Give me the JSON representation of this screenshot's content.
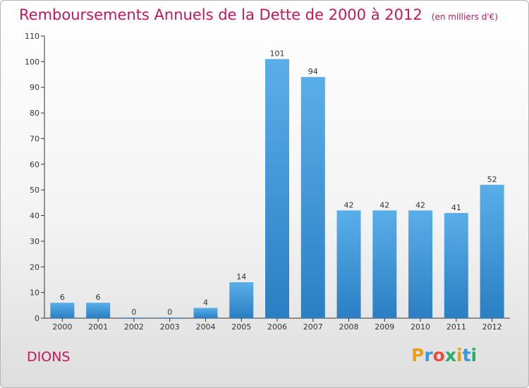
{
  "title": "Remboursements Annuels de la Dette de 2000 à 2012",
  "subtitle": "(en milliers d'€)",
  "place_name": "DIONS",
  "logo": {
    "letters": [
      "P",
      "r",
      "o",
      "x",
      "i",
      "t",
      "i"
    ],
    "colors": [
      "#f39c12",
      "#3498db",
      "#e74c3c",
      "#27ae60",
      "#f39c12",
      "#3498db",
      "#27ae60"
    ]
  },
  "colors": {
    "bar_top": "#5aaee8",
    "bar_bottom": "#2a7fc4",
    "title": "#c2185b"
  },
  "chart_data": {
    "type": "bar",
    "title": "Remboursements Annuels de la Dette de 2000 à 2012",
    "subtitle": "(en milliers d'€)",
    "categories": [
      "2000",
      "2001",
      "2002",
      "2003",
      "2004",
      "2005",
      "2006",
      "2007",
      "2008",
      "2009",
      "2010",
      "2011",
      "2012"
    ],
    "values": [
      6,
      6,
      0,
      0,
      4,
      14,
      101,
      94,
      42,
      42,
      42,
      41,
      52
    ],
    "value_labels": [
      "6",
      "6",
      "0",
      "0",
      "4",
      "14",
      "101",
      "94",
      "42",
      "42",
      "42",
      "41",
      "52"
    ],
    "ylim": [
      0,
      110
    ],
    "yticks": [
      0,
      10,
      20,
      30,
      40,
      50,
      60,
      70,
      80,
      90,
      100,
      110
    ],
    "xlabel": "",
    "ylabel": "",
    "grid": false,
    "legend": "none"
  }
}
